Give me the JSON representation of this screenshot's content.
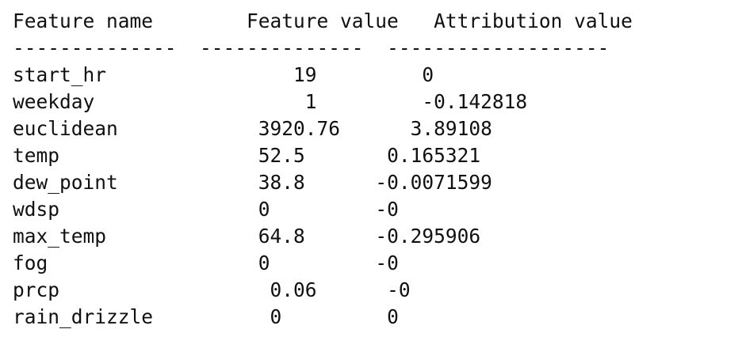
{
  "header": {
    "feature_name": "Feature name",
    "feature_value": "Feature value",
    "attribution_value": "Attribution value"
  },
  "separator": {
    "feature_name": "--------------",
    "feature_value": "--------------",
    "attribution_value": "-------------------"
  },
  "rows": [
    {
      "feature_name": "start_hr",
      "feature_value": "19",
      "attribution_value": "0"
    },
    {
      "feature_name": "weekday",
      "feature_value": "1",
      "attribution_value": "-0.142818"
    },
    {
      "feature_name": "euclidean",
      "feature_value": "3920.76",
      "attribution_value": "3.89108"
    },
    {
      "feature_name": "temp",
      "feature_value": "52.5",
      "attribution_value": "0.165321"
    },
    {
      "feature_name": "dew_point",
      "feature_value": "38.8",
      "attribution_value": "-0.0071599"
    },
    {
      "feature_name": "wdsp",
      "feature_value": "0",
      "attribution_value": "-0"
    },
    {
      "feature_name": "max_temp",
      "feature_value": "64.8",
      "attribution_value": "-0.295906"
    },
    {
      "feature_name": "fog",
      "feature_value": "0",
      "attribution_value": "-0"
    },
    {
      "feature_name": "prcp",
      "feature_value": "0.06",
      "attribution_value": "-0"
    },
    {
      "feature_name": "rain_drizzle",
      "feature_value": "0",
      "attribution_value": "0"
    }
  ]
}
